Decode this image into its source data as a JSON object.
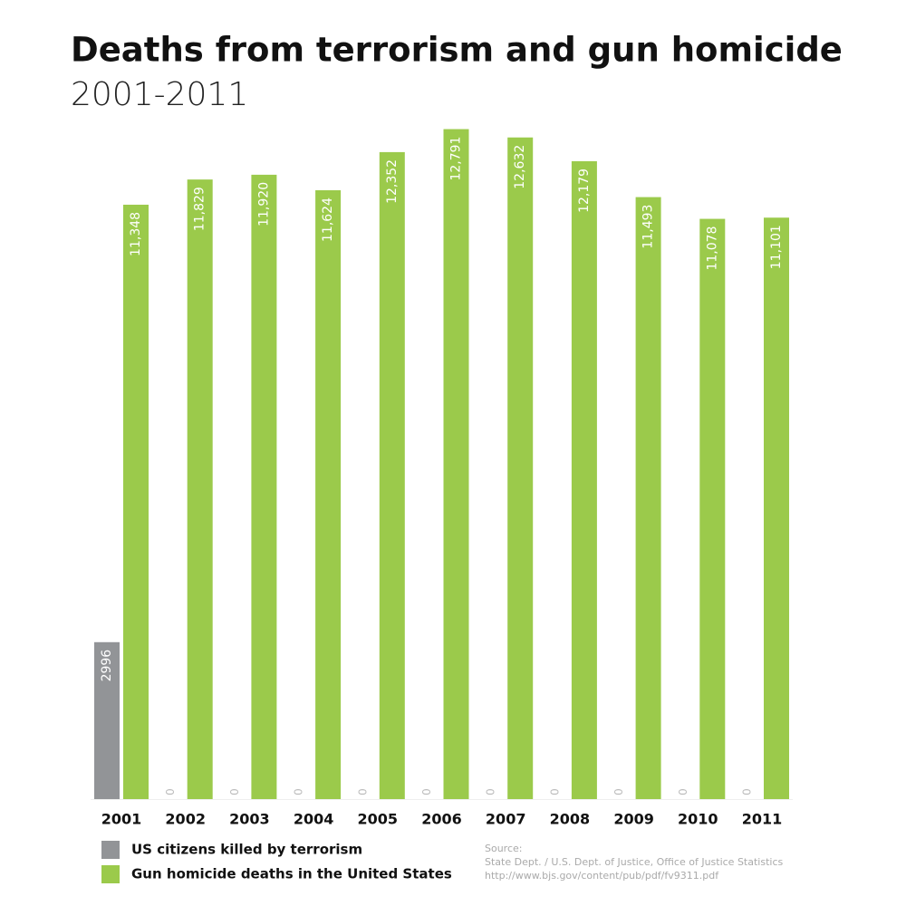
{
  "chart_data": {
    "type": "bar",
    "title": "Deaths from terrorism and gun homicide",
    "subtitle": "2001-2011",
    "categories": [
      "2001",
      "2002",
      "2003",
      "2004",
      "2005",
      "2006",
      "2007",
      "2008",
      "2009",
      "2010",
      "2011"
    ],
    "series": [
      {
        "name": "US citizens killed by terrorism",
        "color": "#929497",
        "values": [
          2996,
          0,
          0,
          0,
          0,
          0,
          0,
          0,
          0,
          0,
          0
        ]
      },
      {
        "name": "Gun homicide deaths in the United States",
        "color": "#9bca4b",
        "values": [
          11348,
          11829,
          11920,
          11624,
          12352,
          12791,
          12632,
          12179,
          11493,
          11078,
          11101
        ],
        "value_labels": [
          "11,348",
          "11,829",
          "11,920",
          "11,624",
          "12,352",
          "12,791",
          "12,632",
          "12,179",
          "11,493",
          "11,078",
          "11,101"
        ]
      }
    ],
    "ylim": [
      0,
      12800
    ],
    "source": [
      "Source:",
      "State Dept. / U.S. Dept. of Justice, Office of Justice Statistics",
      "http://www.bjs.gov/content/pub/pdf/fv9311.pdf"
    ]
  }
}
